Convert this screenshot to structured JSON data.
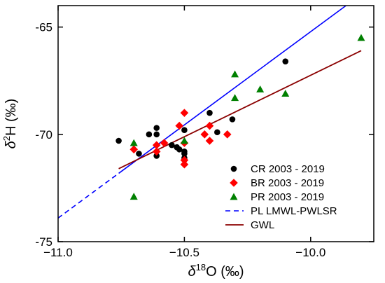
{
  "chart_data": {
    "type": "scatter",
    "title": "",
    "xlabel": {
      "delta": "δ",
      "superscript": "18",
      "main": "O (‰)"
    },
    "ylabel": {
      "delta": "δ",
      "superscript": "2",
      "main": "H (‰)"
    },
    "xlim": [
      -11.0,
      -9.75
    ],
    "ylim": [
      -75,
      -64
    ],
    "x_ticks": [
      -11.0,
      -10.5,
      -10.0
    ],
    "x_tick_labels": [
      "−11.0",
      "−10.5",
      "−10.0"
    ],
    "y_ticks": [
      -75,
      -70,
      -65
    ],
    "y_tick_labels": [
      "-75",
      "-70",
      "-65"
    ],
    "grid": false,
    "legend_position": "bottom-right",
    "series": [
      {
        "name": "CR 2003 - 2019",
        "marker": "circle",
        "color": "#000000",
        "points": [
          [
            -10.76,
            -70.3
          ],
          [
            -10.68,
            -70.9
          ],
          [
            -10.64,
            -70.0
          ],
          [
            -10.61,
            -70.0
          ],
          [
            -10.61,
            -69.7
          ],
          [
            -10.61,
            -71.0
          ],
          [
            -10.55,
            -70.5
          ],
          [
            -10.53,
            -70.6
          ],
          [
            -10.52,
            -70.7
          ],
          [
            -10.5,
            -69.8
          ],
          [
            -10.5,
            -70.8
          ],
          [
            -10.5,
            -70.9
          ],
          [
            -10.5,
            -71.1
          ],
          [
            -10.4,
            -69.0
          ],
          [
            -10.37,
            -69.9
          ],
          [
            -10.31,
            -69.3
          ],
          [
            -10.1,
            -66.6
          ]
        ]
      },
      {
        "name": "BR 2003 - 2019",
        "marker": "diamond",
        "color": "#ff0000",
        "points": [
          [
            -10.7,
            -70.7
          ],
          [
            -10.61,
            -70.5
          ],
          [
            -10.61,
            -70.8
          ],
          [
            -10.58,
            -70.4
          ],
          [
            -10.52,
            -69.6
          ],
          [
            -10.5,
            -69.0
          ],
          [
            -10.5,
            -70.4
          ],
          [
            -10.5,
            -71.2
          ],
          [
            -10.5,
            -71.4
          ],
          [
            -10.42,
            -70.0
          ],
          [
            -10.4,
            -70.3
          ],
          [
            -10.4,
            -69.6
          ],
          [
            -10.33,
            -70.0
          ]
        ]
      },
      {
        "name": "PR 2003 - 2019",
        "marker": "triangle",
        "color": "#008000",
        "points": [
          [
            -10.7,
            -70.4
          ],
          [
            -10.7,
            -72.9
          ],
          [
            -10.5,
            -70.3
          ],
          [
            -10.3,
            -68.3
          ],
          [
            -10.3,
            -67.2
          ],
          [
            -10.2,
            -67.9
          ],
          [
            -10.1,
            -68.1
          ],
          [
            -9.8,
            -65.5
          ]
        ]
      },
      {
        "name": "PL LMWL-PWLSR",
        "type": "line",
        "style": "dashed-then-solid",
        "color": "#0000ff",
        "line": [
          [
            -11.0,
            -73.9
          ],
          [
            -9.86,
            -64.0
          ]
        ],
        "dash_until_x": -10.76
      },
      {
        "name": "GWL",
        "type": "line",
        "style": "solid",
        "color": "#8b0000",
        "line": [
          [
            -10.76,
            -71.6
          ],
          [
            -9.8,
            -66.1
          ]
        ]
      }
    ]
  }
}
